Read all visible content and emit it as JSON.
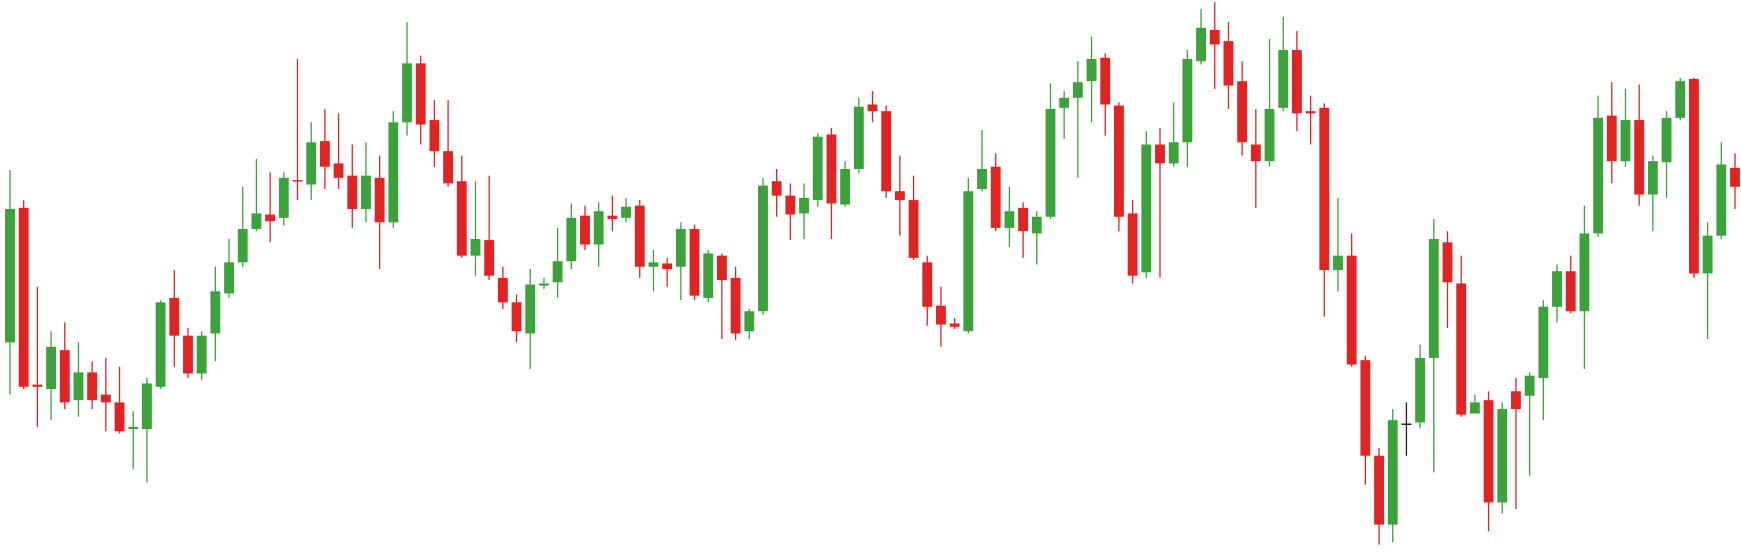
{
  "chart_data": {
    "type": "candlestick",
    "up_color": "#3ca23c",
    "down_color": "#e02424",
    "doji_color": "#222222",
    "ylim": [
      0,
      502
    ],
    "open": [
      194,
      315,
      156,
      152,
      187,
      142,
      167,
      147,
      140,
      116,
      116,
      154,
      234,
      200,
      166,
      202,
      238,
      266,
      296,
      309,
      306,
      340,
      336,
      375,
      355,
      344,
      314,
      342,
      302,
      392,
      445,
      394,
      366,
      339,
      272,
      286,
      252,
      230,
      202,
      245,
      248,
      267,
      308,
      282,
      308,
      306,
      317,
      262,
      265,
      262,
      296,
      234,
      272,
      252,
      204,
      222,
      339,
      326,
      310,
      322,
      381,
      318,
      350,
      408,
      402,
      330,
      322,
      266,
      227,
      211,
      204,
      332,
      352,
      297,
      315,
      292,
      307,
      405,
      414,
      429,
      450,
      407,
      310,
      257,
      372,
      355,
      374,
      447,
      475,
      465,
      429,
      372,
      357,
      405,
      457,
      402,
      405,
      259,
      272,
      178,
      92,
      30,
      121,
      122,
      180,
      284,
      247,
      130,
      142,
      50,
      150,
      146,
      162,
      226,
      258,
      222,
      292,
      398,
      357,
      394,
      327,
      356,
      396,
      431,
      256,
      290,
      351
    ],
    "high": [
      349,
      322,
      244,
      204,
      212,
      194,
      177,
      180,
      172,
      132,
      162,
      232,
      259,
      207,
      204,
      262,
      287,
      334,
      359,
      347,
      347,
      449,
      392,
      404,
      400,
      372,
      374,
      362,
      402,
      482,
      452,
      412,
      412,
      362,
      339,
      344,
      262,
      237,
      260,
      252,
      297,
      319,
      317,
      320,
      326,
      324,
      322,
      277,
      270,
      302,
      300,
      277,
      274,
      262,
      224,
      342,
      350,
      337,
      337,
      382,
      387,
      357,
      414,
      420,
      407,
      362,
      344,
      272,
      244,
      216,
      342,
      385,
      364,
      334,
      320,
      312,
      427,
      420,
      447,
      469,
      454,
      410,
      322,
      384,
      387,
      410,
      457,
      494,
      500,
      482,
      447,
      404,
      467,
      487,
      474,
      416,
      409,
      324,
      292,
      182,
      99,
      134,
      140,
      192,
      305,
      294,
      272,
      147,
      150,
      140,
      162,
      167,
      232,
      264,
      272,
      317,
      416,
      428,
      422,
      426,
      362,
      402,
      432,
      432,
      302,
      374,
      364
    ],
    "low": [
      147,
      152,
      118,
      124,
      134,
      127,
      134,
      114,
      112,
      80,
      68,
      152,
      172,
      162,
      160,
      177,
      234,
      262,
      294,
      284,
      299,
      322,
      322,
      332,
      332,
      297,
      302,
      260,
      297,
      380,
      372,
      352,
      334,
      270,
      254,
      250,
      224,
      194,
      170,
      242,
      234,
      260,
      277,
      262,
      294,
      302,
      252,
      240,
      244,
      232,
      232,
      230,
      197,
      196,
      197,
      219,
      307,
      286,
      287,
      316,
      287,
      316,
      346,
      392,
      324,
      290,
      268,
      209,
      190,
      206,
      202,
      330,
      294,
      280,
      270,
      264,
      305,
      377,
      342,
      392,
      380,
      294,
      247,
      252,
      252,
      352,
      352,
      444,
      422,
      404,
      362,
      315,
      352,
      402,
      384,
      372,
      217,
      240,
      172,
      66,
      12,
      14,
      92,
      117,
      77,
      207,
      127,
      130,
      24,
      40,
      44,
      74,
      124,
      212,
      220,
      170,
      289,
      337,
      352,
      317,
      294,
      324,
      394,
      252,
      197,
      287,
      314
    ],
    "close": [
      314,
      154,
      154,
      190,
      140,
      167,
      142,
      140,
      114,
      118,
      157,
      230,
      200,
      166,
      200,
      240,
      266,
      296,
      310,
      303,
      342,
      339,
      374,
      352,
      342,
      314,
      344,
      302,
      392,
      445,
      390,
      366,
      337,
      272,
      287,
      254,
      230,
      204,
      246,
      247,
      267,
      306,
      282,
      312,
      305,
      316,
      262,
      266,
      260,
      296,
      236,
      274,
      250,
      202,
      222,
      335,
      326,
      309,
      324,
      379,
      319,
      350,
      406,
      402,
      330,
      322,
      270,
      226,
      210,
      208,
      330,
      350,
      297,
      312,
      294,
      307,
      404,
      414,
      428,
      449,
      408,
      307,
      254,
      372,
      355,
      374,
      449,
      477,
      462,
      425,
      374,
      357,
      404,
      457,
      400,
      400,
      259,
      272,
      174,
      92,
      30,
      124,
      121,
      180,
      287,
      248,
      129,
      140,
      50,
      134,
      134,
      164,
      226,
      258,
      222,
      292,
      396,
      357,
      394,
      327,
      357,
      396,
      429,
      256,
      290,
      354,
      334
    ]
  }
}
